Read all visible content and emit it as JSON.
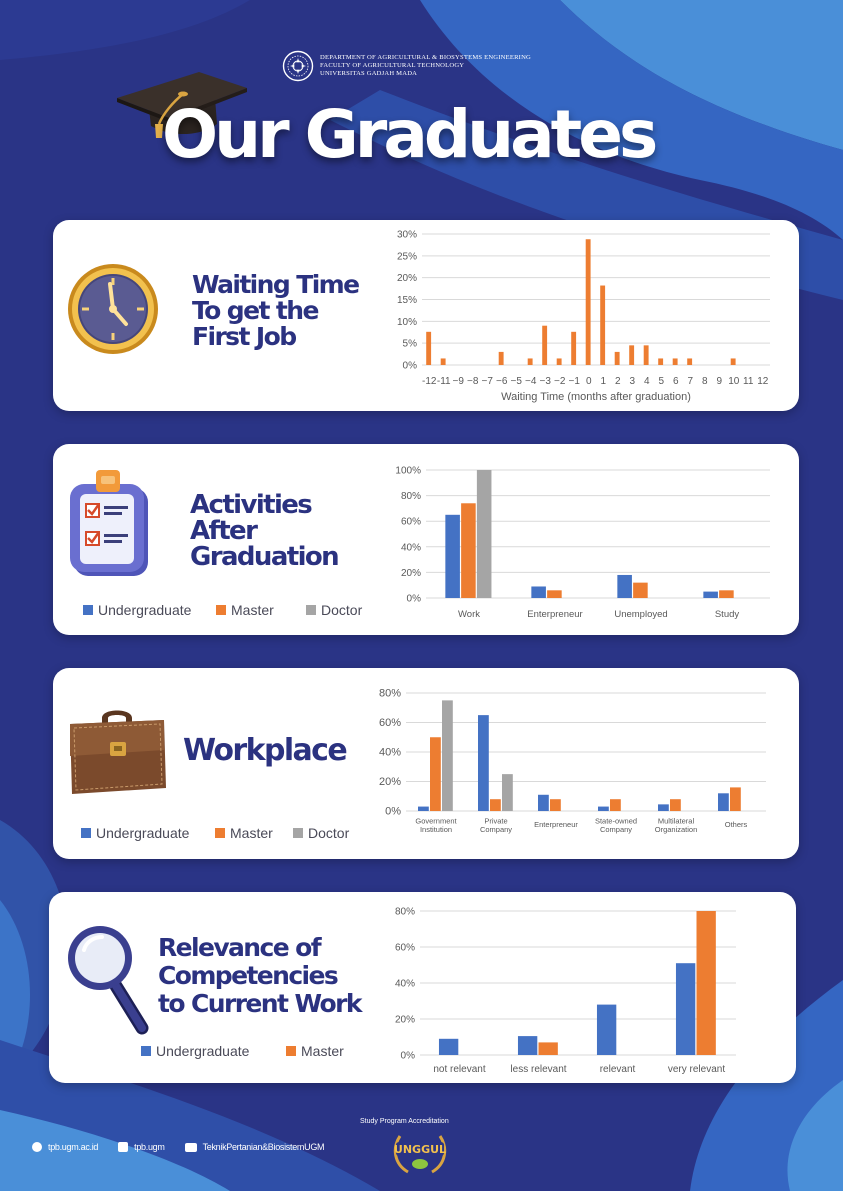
{
  "header": {
    "department": "DEPARTMENT OF AGRICULTURAL & BIOSYSTEMS ENGINEERING",
    "faculty": "FACULTY OF AGRICULTURAL TECHNOLOGY",
    "university": "UNIVERSITAS GADJAH MADA"
  },
  "title": "Our Graduates",
  "colors": {
    "background": "#2a3486",
    "undergraduate": "#4472c4",
    "master": "#ed7d31",
    "doctor": "#a5a5a5",
    "title_text": "#2b3280"
  },
  "icons": {
    "logo": "ugm-seal-icon",
    "cap": "graduation-cap-icon",
    "waiting": "clock-icon",
    "activities": "clipboard-checklist-icon",
    "workplace": "briefcase-icon",
    "relevance": "magnifier-icon",
    "website": "globe-icon",
    "instagram": "instagram-icon",
    "youtube": "youtube-icon"
  },
  "sections": {
    "waiting": {
      "title": "Waiting Time\nTo get the\nFirst Job"
    },
    "activities": {
      "title": "Activities\nAfter\nGraduation",
      "legend": [
        "Undergraduate",
        "Master",
        "Doctor"
      ]
    },
    "workplace": {
      "title": "Workplace",
      "legend": [
        "Undergraduate",
        "Master",
        "Doctor"
      ]
    },
    "relevance": {
      "title": "Relevance of\nCompetencies\nto Current Work",
      "legend": [
        "Undergraduate",
        "Master"
      ]
    }
  },
  "chart_data": [
    {
      "id": "waiting",
      "type": "bar",
      "xlabel": "Waiting Time (months after graduation)",
      "ylabel": "",
      "ylim": [
        0,
        0.3
      ],
      "yticks": [
        "0%",
        "5%",
        "10%",
        "15%",
        "20%",
        "25%",
        "30%"
      ],
      "grid": true,
      "categories": [
        "-12",
        "-11",
        "-9",
        "-8",
        "-7",
        "-6",
        "-5",
        "-4",
        "-3",
        "-2",
        "-1",
        "0",
        "1",
        "2",
        "3",
        "4",
        "5",
        "6",
        "7",
        "8",
        "9",
        "10",
        "11",
        "12"
      ],
      "tick_labels": [
        "-12",
        "-11",
        "−9",
        "−8",
        "−7",
        "−6",
        "−5",
        "−4",
        "−3",
        "−2",
        "−1",
        "0",
        "1",
        "2",
        "3",
        "4",
        "5",
        "6",
        "7",
        "8",
        "9",
        "10",
        "11",
        "12"
      ],
      "series": [
        {
          "color": "#ed7d31",
          "values": [
            0.076,
            0.015,
            0,
            0,
            0,
            0.03,
            0,
            0.015,
            0.09,
            0.015,
            0.076,
            0.288,
            0.182,
            0.03,
            0.045,
            0.045,
            0.015,
            0.015,
            0.015,
            0,
            0,
            0.015,
            0,
            0
          ]
        }
      ]
    },
    {
      "id": "activities",
      "type": "bar",
      "ylim": [
        0,
        1.0
      ],
      "yticks": [
        "0%",
        "20%",
        "40%",
        "60%",
        "80%",
        "100%"
      ],
      "grid": true,
      "categories": [
        "Work",
        "Enterpreneur",
        "Unemployed",
        "Study"
      ],
      "series": [
        {
          "name": "Undergraduate",
          "color": "#4472c4",
          "values": [
            0.65,
            0.09,
            0.18,
            0.05
          ]
        },
        {
          "name": "Master",
          "color": "#ed7d31",
          "values": [
            0.74,
            0.06,
            0.12,
            0.06
          ]
        },
        {
          "name": "Doctor",
          "color": "#a5a5a5",
          "values": [
            1.0,
            0,
            0,
            0
          ]
        }
      ]
    },
    {
      "id": "workplace",
      "type": "bar",
      "ylim": [
        0,
        0.8
      ],
      "yticks": [
        "0%",
        "20%",
        "40%",
        "60%",
        "80%"
      ],
      "grid": true,
      "categories": [
        "Government\nInstitution",
        "Private\nCompany",
        "Enterpreneur",
        "State-owned\nCompany",
        "Multilateral\nOrganization",
        "Others"
      ],
      "series": [
        {
          "name": "Undergraduate",
          "color": "#4472c4",
          "values": [
            0.03,
            0.65,
            0.11,
            0.03,
            0.045,
            0.12
          ]
        },
        {
          "name": "Master",
          "color": "#ed7d31",
          "values": [
            0.5,
            0.08,
            0.08,
            0.08,
            0.08,
            0.16
          ]
        },
        {
          "name": "Doctor",
          "color": "#a5a5a5",
          "values": [
            0.75,
            0.25,
            0,
            0,
            0,
            0
          ]
        }
      ]
    },
    {
      "id": "relevance",
      "type": "bar",
      "ylim": [
        0,
        0.8
      ],
      "yticks": [
        "0%",
        "20%",
        "40%",
        "60%",
        "80%"
      ],
      "grid": true,
      "categories": [
        "not relevant",
        "less relevant",
        "relevant",
        "very relevant"
      ],
      "series": [
        {
          "name": "Undergraduate",
          "color": "#4472c4",
          "values": [
            0.09,
            0.105,
            0.28,
            0.51
          ]
        },
        {
          "name": "Master",
          "color": "#ed7d31",
          "values": [
            0,
            0.07,
            0,
            0.8
          ]
        }
      ]
    }
  ],
  "footer": {
    "website": "tpb.ugm.ac.id",
    "instagram": "tpb.ugm",
    "youtube": "TeknikPertanian&BiosistemUGM",
    "accreditation_label": "Study Program Accreditation",
    "badge": "UNGGUL"
  }
}
